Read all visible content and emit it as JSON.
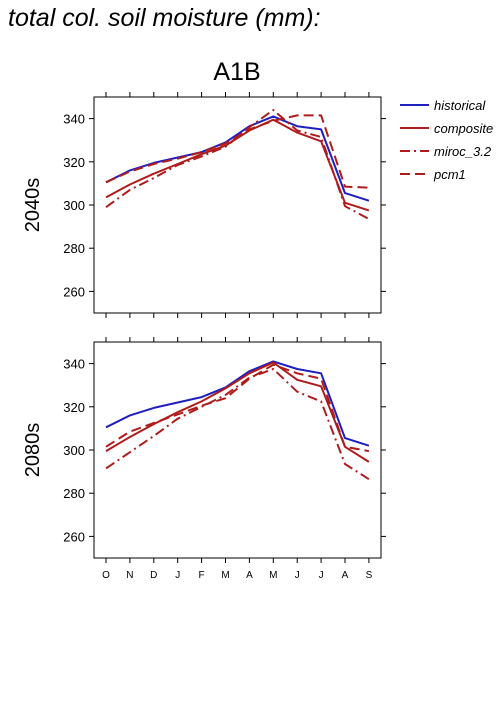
{
  "title": "total col. soil moisture (mm):",
  "chart_data": {
    "type": "line",
    "scenario": "A1B",
    "categories": [
      "O",
      "N",
      "D",
      "J",
      "F",
      "M",
      "A",
      "M",
      "J",
      "J",
      "A",
      "S"
    ],
    "ylim": [
      250,
      350
    ],
    "yticks": [
      260,
      280,
      300,
      320,
      340
    ],
    "grid": false,
    "legend_position": "top-right",
    "colors": {
      "historical": "#1f1fbf",
      "future": "#b01c1c"
    },
    "legend": [
      {
        "name": "historical",
        "style": "solid",
        "color": "#1f1fbf"
      },
      {
        "name": "composite",
        "style": "solid",
        "color": "#b01c1c"
      },
      {
        "name": "miroc_3.2",
        "style": "dashdot",
        "color": "#b01c1c"
      },
      {
        "name": "pcm1",
        "style": "dashed",
        "color": "#b01c1c"
      }
    ],
    "panels": [
      {
        "label": "2040s",
        "series": [
          {
            "name": "historical",
            "values": [
              310.5,
              316,
              319.5,
              322,
              324.5,
              329,
              336.5,
              341,
              336.5,
              335,
              305.5,
              302
            ]
          },
          {
            "name": "composite",
            "values": [
              303.5,
              309.5,
              314.5,
              319,
              323.5,
              327.5,
              334.5,
              339.5,
              333.5,
              329.5,
              301,
              297.5
            ]
          },
          {
            "name": "miroc_3.2",
            "values": [
              299,
              307,
              312.5,
              318.5,
              322.5,
              327,
              336,
              344,
              334.5,
              331.5,
              299.5,
              293.5
            ]
          },
          {
            "name": "pcm1",
            "values": [
              310.5,
              315.5,
              319,
              321.5,
              324.5,
              328.5,
              335,
              339,
              341.5,
              341.5,
              308.5,
              308
            ]
          }
        ]
      },
      {
        "label": "2080s",
        "series": [
          {
            "name": "historical",
            "values": [
              310.5,
              316,
              319.5,
              322,
              324.5,
              329,
              336.5,
              341,
              337.5,
              335.5,
              305.5,
              302
            ]
          },
          {
            "name": "composite",
            "values": [
              299.5,
              306,
              312,
              317.5,
              322.5,
              328.5,
              335.5,
              340.5,
              332.5,
              329.5,
              301.5,
              294.5
            ]
          },
          {
            "name": "miroc_3.2",
            "values": [
              291.5,
              299,
              306.5,
              314.5,
              320,
              325.5,
              333.5,
              337.5,
              327,
              322.5,
              293.5,
              286.5
            ]
          },
          {
            "name": "pcm1",
            "values": [
              301.5,
              308.5,
              312.5,
              316.5,
              320.5,
              324,
              333,
              339.5,
              335.5,
              333,
              301.5,
              299.5
            ]
          }
        ]
      }
    ]
  }
}
